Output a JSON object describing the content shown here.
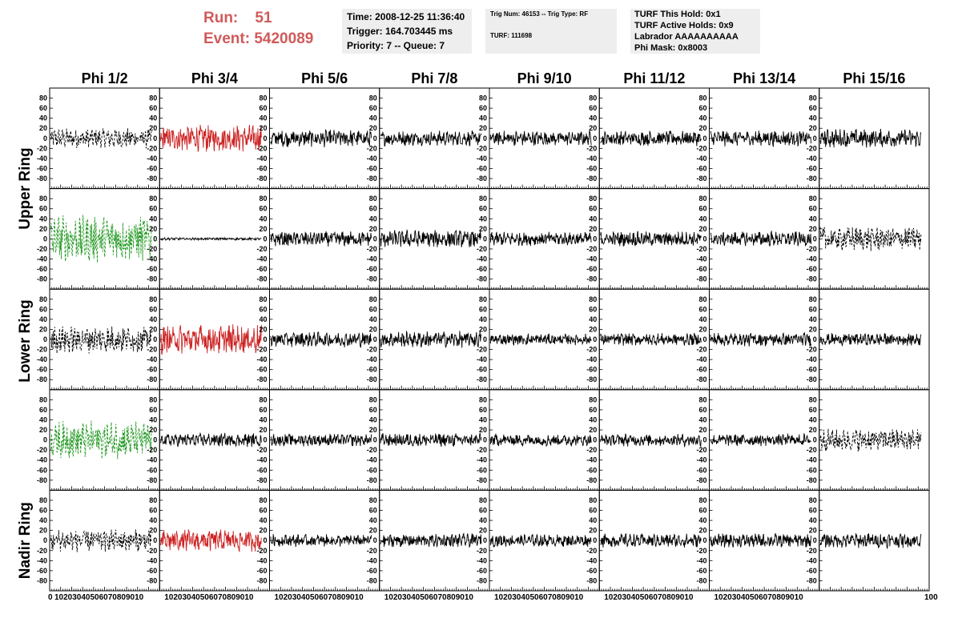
{
  "header": {
    "run_label": "Run:",
    "run_value": "51",
    "event_label": "Event:",
    "event_value": "5420089",
    "time": "Time: 2008-12-25 11:36:40",
    "trigger": "Trigger: 164.703445 ms",
    "priority": "Priority: 7 -- Queue: 7",
    "trig_num": "Trig Num: 46153 -- Trig Type: RF",
    "turf": "TURF: 111698",
    "turf_this_hold": "TURF This Hold: 0x1",
    "turf_active_holds": "TURF Active Holds: 0x9",
    "labrador": "Labrador AAAAAAAAAA",
    "phi_mask": "Phi Mask: 0x8003",
    "accent_color": "#d05a5a"
  },
  "chart_data": {
    "type": "line",
    "columns": [
      "Phi 1/2",
      "Phi 3/4",
      "Phi 5/6",
      "Phi 7/8",
      "Phi 9/10",
      "Phi 11/12",
      "Phi 13/14",
      "Phi 15/16"
    ],
    "ring_labels": [
      "Upper Ring",
      "Lower Ring",
      "Nadir Ring"
    ],
    "panel_rows": 5,
    "xlim": [
      0,
      100
    ],
    "ylim": [
      -100,
      100
    ],
    "yticks": [
      -80,
      -60,
      -40,
      -20,
      0,
      20,
      40,
      60,
      80
    ],
    "xticks": [
      0,
      10,
      20,
      30,
      40,
      50,
      60,
      70,
      80,
      90,
      100
    ],
    "x_tick_label_row": [
      "0",
      "10203040506070809010",
      "10203040506070809010",
      "10203040506070809010",
      "10203040506070809010",
      "10203040506070809010",
      "10203040506070809010",
      "10203040506070809010",
      "100"
    ],
    "colors": {
      "normal": "#000000",
      "triggered": "#cc2222",
      "masked": "#229922"
    },
    "panels": [
      {
        "row": 0,
        "col": 0,
        "style": "dashed",
        "color": "normal",
        "amp": 16
      },
      {
        "row": 0,
        "col": 1,
        "style": "solid",
        "color": "triggered",
        "amp": 22
      },
      {
        "row": 0,
        "col": 2,
        "style": "solid",
        "color": "normal",
        "amp": 14
      },
      {
        "row": 0,
        "col": 3,
        "style": "solid",
        "color": "normal",
        "amp": 12
      },
      {
        "row": 0,
        "col": 4,
        "style": "solid",
        "color": "normal",
        "amp": 12
      },
      {
        "row": 0,
        "col": 5,
        "style": "solid",
        "color": "normal",
        "amp": 12
      },
      {
        "row": 0,
        "col": 6,
        "style": "solid",
        "color": "normal",
        "amp": 13
      },
      {
        "row": 0,
        "col": 7,
        "style": "solid",
        "color": "normal",
        "amp": 15
      },
      {
        "row": 1,
        "col": 0,
        "style": "dashed",
        "color": "masked",
        "amp": 38
      },
      {
        "row": 1,
        "col": 1,
        "style": "solid",
        "color": "normal",
        "amp": 2
      },
      {
        "row": 1,
        "col": 2,
        "style": "solid",
        "color": "normal",
        "amp": 12
      },
      {
        "row": 1,
        "col": 3,
        "style": "solid",
        "color": "normal",
        "amp": 14
      },
      {
        "row": 1,
        "col": 4,
        "style": "solid",
        "color": "normal",
        "amp": 11
      },
      {
        "row": 1,
        "col": 5,
        "style": "solid",
        "color": "normal",
        "amp": 12
      },
      {
        "row": 1,
        "col": 6,
        "style": "solid",
        "color": "normal",
        "amp": 12
      },
      {
        "row": 1,
        "col": 7,
        "style": "dashed",
        "color": "normal",
        "amp": 20
      },
      {
        "row": 2,
        "col": 0,
        "style": "dashed",
        "color": "normal",
        "amp": 22
      },
      {
        "row": 2,
        "col": 1,
        "style": "solid",
        "color": "triggered",
        "amp": 24
      },
      {
        "row": 2,
        "col": 2,
        "style": "solid",
        "color": "normal",
        "amp": 12
      },
      {
        "row": 2,
        "col": 3,
        "style": "solid",
        "color": "normal",
        "amp": 13
      },
      {
        "row": 2,
        "col": 4,
        "style": "solid",
        "color": "normal",
        "amp": 9
      },
      {
        "row": 2,
        "col": 5,
        "style": "solid",
        "color": "normal",
        "amp": 10
      },
      {
        "row": 2,
        "col": 6,
        "style": "solid",
        "color": "normal",
        "amp": 11
      },
      {
        "row": 2,
        "col": 7,
        "style": "solid",
        "color": "normal",
        "amp": 10
      },
      {
        "row": 3,
        "col": 0,
        "style": "dashed",
        "color": "masked",
        "amp": 30
      },
      {
        "row": 3,
        "col": 1,
        "style": "solid",
        "color": "normal",
        "amp": 11
      },
      {
        "row": 3,
        "col": 2,
        "style": "solid",
        "color": "normal",
        "amp": 10
      },
      {
        "row": 3,
        "col": 3,
        "style": "solid",
        "color": "normal",
        "amp": 11
      },
      {
        "row": 3,
        "col": 4,
        "style": "solid",
        "color": "normal",
        "amp": 10
      },
      {
        "row": 3,
        "col": 5,
        "style": "solid",
        "color": "normal",
        "amp": 10
      },
      {
        "row": 3,
        "col": 6,
        "style": "solid",
        "color": "normal",
        "amp": 10
      },
      {
        "row": 3,
        "col": 7,
        "style": "dashed",
        "color": "normal",
        "amp": 18
      },
      {
        "row": 4,
        "col": 0,
        "style": "dashed",
        "color": "normal",
        "amp": 18
      },
      {
        "row": 4,
        "col": 1,
        "style": "solid",
        "color": "triggered",
        "amp": 18
      },
      {
        "row": 4,
        "col": 2,
        "style": "solid",
        "color": "normal",
        "amp": 10
      },
      {
        "row": 4,
        "col": 3,
        "style": "solid",
        "color": "normal",
        "amp": 11
      },
      {
        "row": 4,
        "col": 4,
        "style": "solid",
        "color": "normal",
        "amp": 10
      },
      {
        "row": 4,
        "col": 5,
        "style": "solid",
        "color": "normal",
        "amp": 11
      },
      {
        "row": 4,
        "col": 6,
        "style": "solid",
        "color": "normal",
        "amp": 11
      },
      {
        "row": 4,
        "col": 7,
        "style": "solid",
        "color": "normal",
        "amp": 12
      }
    ]
  }
}
